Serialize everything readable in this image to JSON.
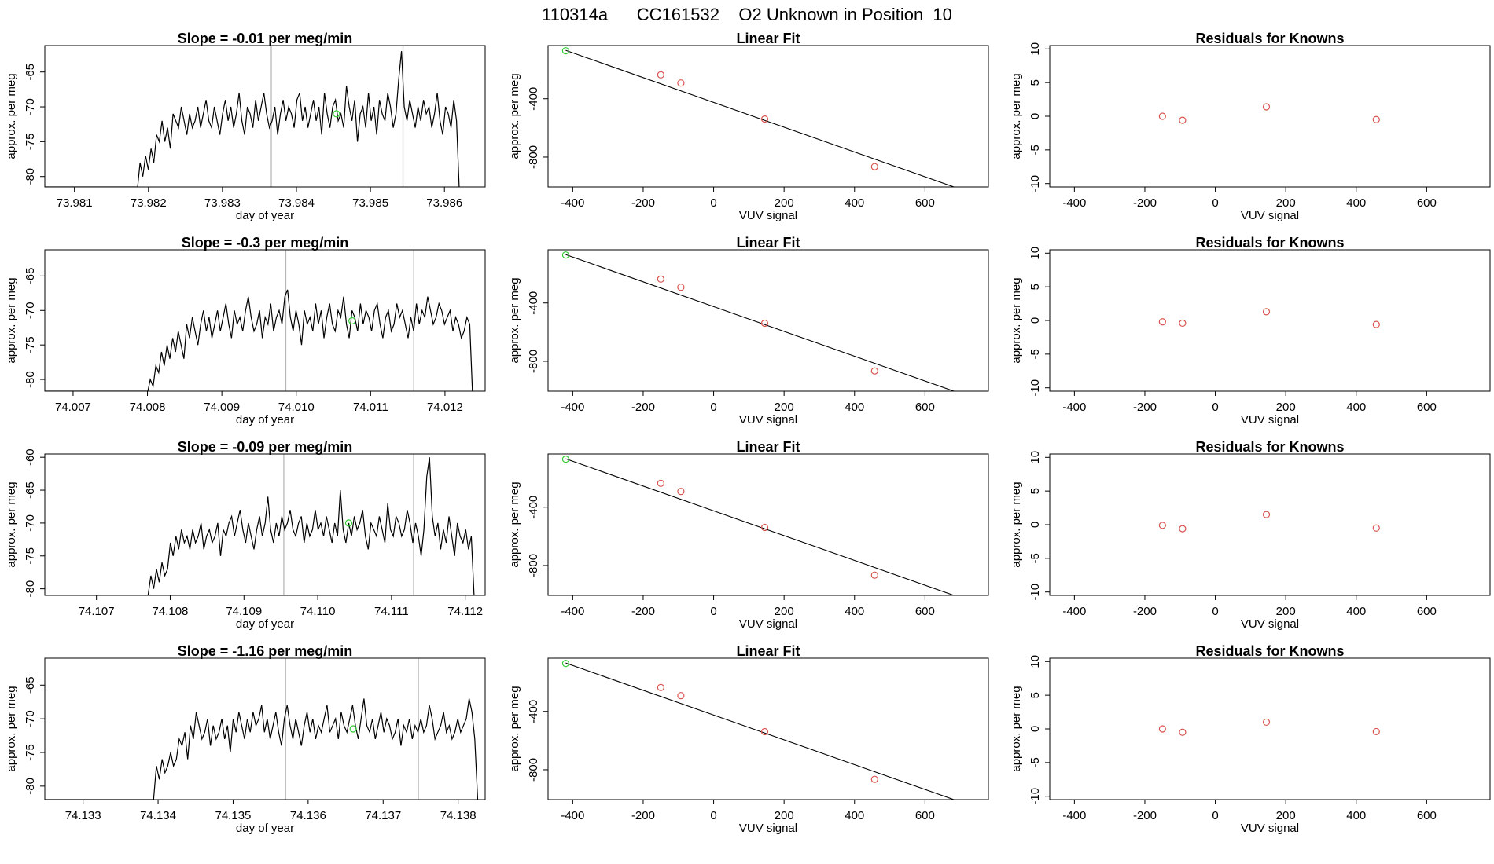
{
  "figure_title": "110314a      CC161532    O2 Unknown in Position  10",
  "colors": {
    "trace": "#000000",
    "known_point": "#d9534f",
    "unknown_point": "#33cc33",
    "vline": "#b8b8b8",
    "fit_line": "#000000"
  },
  "chart_data": [
    {
      "type": "line",
      "title": "Slope =  -0.01  per meg/min",
      "xlabel": "day of year",
      "ylabel": "approx. per meg",
      "xlim": [
        73.9806,
        73.98655
      ],
      "ylim": [
        -81.5,
        -61.2
      ],
      "xticks": [
        73.981,
        73.982,
        73.983,
        73.984,
        73.985,
        73.986
      ],
      "xtick_labels": [
        "73.981",
        "73.982",
        "73.983",
        "73.984",
        "73.985",
        "73.986"
      ],
      "yticks": [
        -80,
        -75,
        -70,
        -65
      ],
      "ytick_labels": [
        "-80",
        "-75",
        "-70",
        "-65"
      ],
      "vlines": [
        73.98366,
        73.98544
      ],
      "trace_x_range": [
        73.98185,
        73.9862
      ],
      "trace_y": [
        -82,
        -78,
        -80,
        -77,
        -79,
        -76,
        -78,
        -74,
        -75,
        -72,
        -75,
        -73,
        -76,
        -71,
        -72,
        -73,
        -70,
        -72,
        -74,
        -71,
        -73,
        -72,
        -70,
        -73,
        -71,
        -69,
        -72,
        -73,
        -70,
        -72,
        -74,
        -71,
        -69,
        -72,
        -70,
        -73,
        -71,
        -68,
        -72,
        -74,
        -70,
        -71,
        -73,
        -69,
        -72,
        -70,
        -68,
        -71,
        -73,
        -72,
        -70,
        -74,
        -71,
        -69,
        -72,
        -70,
        -71,
        -73,
        -69,
        -68,
        -72,
        -70,
        -73,
        -71,
        -69,
        -72,
        -70,
        -74,
        -68,
        -71,
        -73,
        -70,
        -69,
        -72,
        -71,
        -73,
        -67,
        -70,
        -72,
        -69,
        -75,
        -71,
        -70,
        -73,
        -68,
        -72,
        -70,
        -74,
        -69,
        -71,
        -72,
        -68,
        -70,
        -73,
        -71,
        -66,
        -62,
        -70,
        -72,
        -69,
        -71,
        -73,
        -70,
        -72,
        -69,
        -71,
        -70,
        -73,
        -71,
        -68,
        -72,
        -74,
        -70,
        -71,
        -73,
        -69,
        -72,
        -82
      ],
      "marker": {
        "x": 73.98454,
        "y": -71
      }
    },
    {
      "type": "scatter",
      "title": "Linear Fit",
      "xlabel": "VUV signal",
      "ylabel": "approx. per meg",
      "xlim": [
        -470,
        780
      ],
      "ylim": [
        -1005,
        -35
      ],
      "xticks": [
        -400,
        -200,
        0,
        200,
        400,
        600
      ],
      "xtick_labels": [
        "-400",
        "-200",
        "0",
        "200",
        "400",
        "600"
      ],
      "yticks": [
        -800,
        -400
      ],
      "ytick_labels": [
        "-800",
        "-400"
      ],
      "known_points": [
        [
          -150,
          -236
        ],
        [
          -93,
          -292
        ],
        [
          145,
          -539
        ],
        [
          457,
          -866
        ]
      ],
      "unknown_point": [
        -420,
        -71
      ],
      "fit_line": {
        "x": [
          -420,
          735
        ],
        "y": [
          -68,
          -1050
        ]
      }
    },
    {
      "type": "scatter",
      "title": "Residuals for Knowns",
      "xlabel": "VUV signal",
      "ylabel": "approx. per meg",
      "xlim": [
        -470,
        780
      ],
      "ylim": [
        -10.5,
        10.5
      ],
      "xticks": [
        -400,
        -200,
        0,
        200,
        400,
        600
      ],
      "xtick_labels": [
        "-400",
        "-200",
        "0",
        "200",
        "400",
        "600"
      ],
      "yticks": [
        -10,
        -5,
        0,
        5,
        10
      ],
      "ytick_labels": [
        "-10",
        "-5",
        "0",
        "5",
        "10"
      ],
      "points": [
        [
          -150,
          0.0
        ],
        [
          -93,
          -0.6
        ],
        [
          145,
          1.4
        ],
        [
          457,
          -0.5
        ]
      ]
    },
    {
      "type": "line",
      "title": "Slope =  -0.3  per meg/min",
      "xlabel": "day of year",
      "ylabel": "approx. per meg",
      "xlim": [
        74.00662,
        74.01254
      ],
      "ylim": [
        -81.7,
        -61.2
      ],
      "xticks": [
        74.007,
        74.008,
        74.009,
        74.01,
        74.011,
        74.012
      ],
      "xtick_labels": [
        "74.007",
        "74.008",
        "74.009",
        "74.010",
        "74.011",
        "74.012"
      ],
      "yticks": [
        -80,
        -75,
        -70,
        -65
      ],
      "ytick_labels": [
        "-80",
        "-75",
        "-70",
        "-65"
      ],
      "vlines": [
        74.00986,
        74.01158
      ],
      "trace_x_range": [
        74.008,
        74.01237
      ],
      "trace_y": [
        -82,
        -80,
        -81,
        -78,
        -79,
        -76,
        -78,
        -75,
        -77,
        -74,
        -76,
        -73,
        -75,
        -77,
        -72,
        -74,
        -71,
        -73,
        -75,
        -72,
        -70,
        -73,
        -71,
        -74,
        -72,
        -70,
        -73,
        -71,
        -69,
        -72,
        -74,
        -70,
        -72,
        -71,
        -73,
        -70,
        -68,
        -71,
        -73,
        -72,
        -70,
        -74,
        -71,
        -72,
        -69,
        -73,
        -71,
        -70,
        -72,
        -68,
        -67,
        -71,
        -73,
        -70,
        -72,
        -75,
        -70,
        -72,
        -71,
        -73,
        -69,
        -72,
        -70,
        -74,
        -71,
        -69,
        -72,
        -73,
        -70,
        -71,
        -68,
        -72,
        -74,
        -70,
        -71,
        -73,
        -69,
        -72,
        -70,
        -71,
        -73,
        -70,
        -69,
        -72,
        -74,
        -71,
        -70,
        -73,
        -72,
        -69,
        -71,
        -70,
        -72,
        -74,
        -71,
        -73,
        -69,
        -72,
        -70,
        -71,
        -68,
        -70,
        -72,
        -71,
        -69,
        -70,
        -72,
        -71,
        -70,
        -73,
        -71,
        -72,
        -74,
        -73,
        -71,
        -72,
        -82
      ],
      "marker": {
        "x": 74.01075,
        "y": -71.5
      }
    },
    {
      "type": "scatter",
      "title": "Linear Fit",
      "xlabel": "VUV signal",
      "ylabel": "approx. per meg",
      "xlim": [
        -470,
        780
      ],
      "ylim": [
        -1005,
        -35
      ],
      "xticks": [
        -400,
        -200,
        0,
        200,
        400,
        600
      ],
      "xtick_labels": [
        "-400",
        "-200",
        "0",
        "200",
        "400",
        "600"
      ],
      "yticks": [
        -800,
        -400
      ],
      "ytick_labels": [
        "-800",
        "-400"
      ],
      "known_points": [
        [
          -150,
          -236
        ],
        [
          -93,
          -292
        ],
        [
          145,
          -539
        ],
        [
          457,
          -866
        ]
      ],
      "unknown_point": [
        -420,
        -71
      ],
      "fit_line": {
        "x": [
          -420,
          735
        ],
        "y": [
          -68,
          -1050
        ]
      }
    },
    {
      "type": "scatter",
      "title": "Residuals for Knowns",
      "xlabel": "VUV signal",
      "ylabel": "approx. per meg",
      "xlim": [
        -470,
        780
      ],
      "ylim": [
        -10.5,
        10.5
      ],
      "xticks": [
        -400,
        -200,
        0,
        200,
        400,
        600
      ],
      "xtick_labels": [
        "-400",
        "-200",
        "0",
        "200",
        "400",
        "600"
      ],
      "yticks": [
        -10,
        -5,
        0,
        5,
        10
      ],
      "ytick_labels": [
        "-10",
        "-5",
        "0",
        "5",
        "10"
      ],
      "points": [
        [
          -150,
          -0.2
        ],
        [
          -93,
          -0.4
        ],
        [
          145,
          1.3
        ],
        [
          457,
          -0.6
        ]
      ]
    },
    {
      "type": "line",
      "title": "Slope =  -0.09  per meg/min",
      "xlabel": "day of year",
      "ylabel": "approx. per meg",
      "xlim": [
        74.1063,
        74.11227
      ],
      "ylim": [
        -81.0,
        -59.5
      ],
      "xticks": [
        74.107,
        74.108,
        74.109,
        74.11,
        74.111,
        74.112
      ],
      "xtick_labels": [
        "74.107",
        "74.108",
        "74.109",
        "74.110",
        "74.111",
        "74.112"
      ],
      "yticks": [
        -80,
        -75,
        -70,
        -65,
        -60
      ],
      "ytick_labels": [
        "-80",
        "-75",
        "-70",
        "-65",
        "-60"
      ],
      "vlines": [
        74.10954,
        74.1113
      ],
      "trace_x_range": [
        74.1077,
        74.11212
      ],
      "trace_y": [
        -81,
        -78,
        -80,
        -77,
        -79,
        -76,
        -78,
        -77,
        -73,
        -75,
        -72,
        -74,
        -71,
        -73,
        -72,
        -74,
        -71,
        -73,
        -72,
        -70,
        -74,
        -72,
        -71,
        -73,
        -72,
        -70,
        -75,
        -71,
        -72,
        -70,
        -69,
        -72,
        -70,
        -68,
        -71,
        -73,
        -70,
        -72,
        -74,
        -71,
        -69,
        -72,
        -70,
        -66,
        -71,
        -73,
        -70,
        -72,
        -69,
        -71,
        -70,
        -68,
        -71,
        -72,
        -70,
        -69,
        -73,
        -70,
        -72,
        -71,
        -68,
        -71,
        -70,
        -72,
        -69,
        -71,
        -73,
        -70,
        -72,
        -65,
        -71,
        -73,
        -70,
        -72,
        -69,
        -71,
        -70,
        -68,
        -72,
        -74,
        -70,
        -71,
        -72,
        -69,
        -71,
        -73,
        -67,
        -71,
        -72,
        -69,
        -70,
        -72,
        -71,
        -68,
        -70,
        -73,
        -70,
        -72,
        -75,
        -71,
        -63,
        -60,
        -69,
        -72,
        -70,
        -74,
        -71,
        -73,
        -69,
        -72,
        -75,
        -70,
        -72,
        -73,
        -71,
        -74,
        -72,
        -81
      ],
      "marker": {
        "x": 74.11042,
        "y": -70
      }
    },
    {
      "type": "scatter",
      "title": "Linear Fit",
      "xlabel": "VUV signal",
      "ylabel": "approx. per meg",
      "xlim": [
        -470,
        780
      ],
      "ylim": [
        -1005,
        -35
      ],
      "xticks": [
        -400,
        -200,
        0,
        200,
        400,
        600
      ],
      "xtick_labels": [
        "-400",
        "-200",
        "0",
        "200",
        "400",
        "600"
      ],
      "yticks": [
        -800,
        -400
      ],
      "ytick_labels": [
        "-800",
        "-400"
      ],
      "known_points": [
        [
          -150,
          -236
        ],
        [
          -93,
          -292
        ],
        [
          145,
          -539
        ],
        [
          457,
          -866
        ]
      ],
      "unknown_point": [
        -420,
        -71
      ],
      "fit_line": {
        "x": [
          -420,
          735
        ],
        "y": [
          -68,
          -1050
        ]
      }
    },
    {
      "type": "scatter",
      "title": "Residuals for Knowns",
      "xlabel": "VUV signal",
      "ylabel": "approx. per meg",
      "xlim": [
        -470,
        780
      ],
      "ylim": [
        -10.5,
        10.5
      ],
      "xticks": [
        -400,
        -200,
        0,
        200,
        400,
        600
      ],
      "xtick_labels": [
        "-400",
        "-200",
        "0",
        "200",
        "400",
        "600"
      ],
      "yticks": [
        -10,
        -5,
        0,
        5,
        10
      ],
      "ytick_labels": [
        "-10",
        "-5",
        "0",
        "5",
        "10"
      ],
      "points": [
        [
          -150,
          -0.1
        ],
        [
          -93,
          -0.6
        ],
        [
          145,
          1.5
        ],
        [
          457,
          -0.5
        ]
      ]
    },
    {
      "type": "line",
      "title": "Slope =  -1.16  per meg/min",
      "xlabel": "day of year",
      "ylabel": "approx. per meg",
      "xlim": [
        74.13249,
        74.13836
      ],
      "ylim": [
        -82.0,
        -61.0
      ],
      "xticks": [
        74.133,
        74.134,
        74.135,
        74.136,
        74.137,
        74.138
      ],
      "xtick_labels": [
        "74.133",
        "74.134",
        "74.135",
        "74.136",
        "74.137",
        "74.138"
      ],
      "yticks": [
        -80,
        -75,
        -70,
        -65
      ],
      "ytick_labels": [
        "-80",
        "-75",
        "-70",
        "-65"
      ],
      "vlines": [
        74.1357,
        74.13747
      ],
      "trace_x_range": [
        74.13394,
        74.13826
      ],
      "trace_y": [
        -82,
        -77,
        -79,
        -76,
        -78,
        -77,
        -75,
        -77,
        -76,
        -73,
        -74,
        -72,
        -76,
        -71,
        -73,
        -69,
        -71,
        -73,
        -72,
        -70,
        -74,
        -71,
        -73,
        -72,
        -70,
        -73,
        -71,
        -75,
        -70,
        -72,
        -69,
        -71,
        -73,
        -70,
        -72,
        -69,
        -71,
        -70,
        -68,
        -72,
        -70,
        -73,
        -71,
        -69,
        -72,
        -74,
        -70,
        -68,
        -71,
        -73,
        -70,
        -72,
        -74,
        -71,
        -69,
        -72,
        -70,
        -73,
        -71,
        -72,
        -70,
        -68,
        -72,
        -71,
        -70,
        -73,
        -69,
        -71,
        -72,
        -70,
        -68,
        -71,
        -73,
        -70,
        -67,
        -71,
        -72,
        -70,
        -73,
        -71,
        -69,
        -72,
        -70,
        -71,
        -73,
        -72,
        -70,
        -74,
        -71,
        -72,
        -70,
        -73,
        -71,
        -72,
        -70,
        -72,
        -71,
        -68,
        -70,
        -73,
        -72,
        -71,
        -69,
        -72,
        -71,
        -73,
        -72,
        -70,
        -72,
        -71,
        -70,
        -67,
        -69,
        -73,
        -82
      ],
      "marker": {
        "x": 74.1366,
        "y": -71.5
      }
    },
    {
      "type": "scatter",
      "title": "Linear Fit",
      "xlabel": "VUV signal",
      "ylabel": "approx. per meg",
      "xlim": [
        -470,
        780
      ],
      "ylim": [
        -1005,
        -35
      ],
      "xticks": [
        -400,
        -200,
        0,
        200,
        400,
        600
      ],
      "xtick_labels": [
        "-400",
        "-200",
        "0",
        "200",
        "400",
        "600"
      ],
      "yticks": [
        -800,
        -400
      ],
      "ytick_labels": [
        "-800",
        "-400"
      ],
      "known_points": [
        [
          -150,
          -236
        ],
        [
          -93,
          -292
        ],
        [
          145,
          -539
        ],
        [
          457,
          -866
        ]
      ],
      "unknown_point": [
        -420,
        -71
      ],
      "fit_line": {
        "x": [
          -420,
          735
        ],
        "y": [
          -68,
          -1050
        ]
      }
    },
    {
      "type": "scatter",
      "title": "Residuals for Knowns",
      "xlabel": "VUV signal",
      "ylabel": "approx. per meg",
      "xlim": [
        -470,
        780
      ],
      "ylim": [
        -10.5,
        10.5
      ],
      "xticks": [
        -400,
        -200,
        0,
        200,
        400,
        600
      ],
      "xtick_labels": [
        "-400",
        "-200",
        "0",
        "200",
        "400",
        "600"
      ],
      "yticks": [
        -10,
        -5,
        0,
        5,
        10
      ],
      "ytick_labels": [
        "-10",
        "-5",
        "0",
        "5",
        "10"
      ],
      "points": [
        [
          -150,
          0.0
        ],
        [
          -93,
          -0.5
        ],
        [
          145,
          1.0
        ],
        [
          457,
          -0.4
        ]
      ]
    }
  ]
}
